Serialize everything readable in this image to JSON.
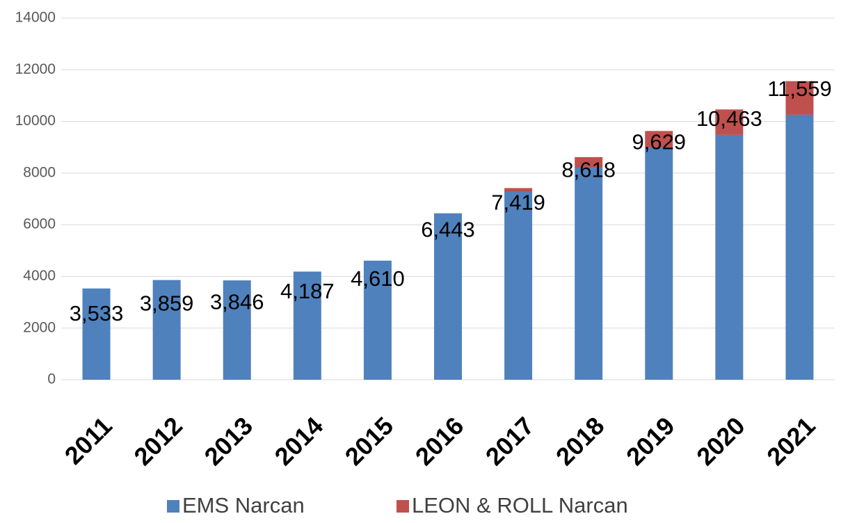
{
  "chart_data": {
    "type": "stacked_bar",
    "categories": [
      "2011",
      "2012",
      "2013",
      "2014",
      "2015",
      "2016",
      "2017",
      "2018",
      "2019",
      "2020",
      "2021"
    ],
    "series": [
      {
        "name": "EMS Narcan",
        "color": "#4f81bd",
        "values": [
          3533,
          3859,
          3846,
          4187,
          4610,
          6443,
          7270,
          8210,
          8990,
          9480,
          10260
        ]
      },
      {
        "name": "LEON & ROLL Narcan",
        "color": "#c0504d",
        "values": [
          0,
          0,
          0,
          0,
          0,
          0,
          149,
          408,
          639,
          983,
          1299
        ]
      }
    ],
    "data_labels": [
      "3,533",
      "3,859",
      "3,846",
      "4,187",
      "4,610",
      "6,443",
      "7,419",
      "8,618",
      "9,629",
      "10,463",
      "11,559"
    ],
    "ylim": [
      0,
      14000
    ],
    "yticks": [
      0,
      2000,
      4000,
      6000,
      8000,
      10000,
      12000,
      14000
    ],
    "grid": true,
    "legend": "bottom"
  }
}
